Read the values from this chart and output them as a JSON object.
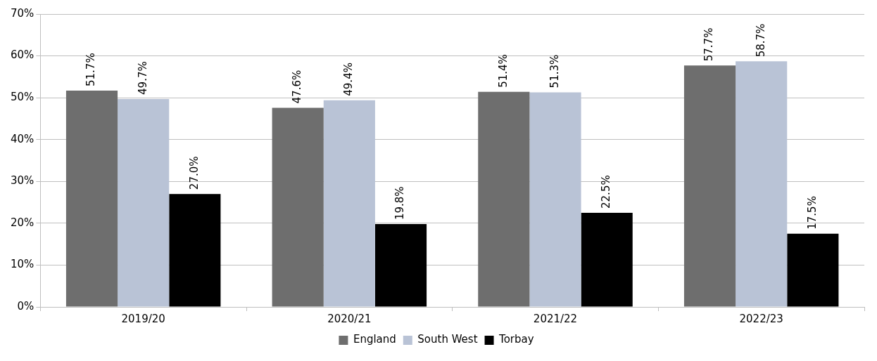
{
  "chart_data": {
    "type": "bar",
    "categories": [
      "2019/20",
      "2020/21",
      "2021/22",
      "2022/23"
    ],
    "series": [
      {
        "name": "England",
        "color": "#6e6e6e",
        "values": [
          51.7,
          47.6,
          51.4,
          57.7
        ],
        "value_labels": [
          "51.7%",
          "47.6%",
          "51.4%",
          "57.7%"
        ]
      },
      {
        "name": "South West",
        "color": "#b9c3d6",
        "values": [
          49.7,
          49.4,
          51.3,
          58.7
        ],
        "value_labels": [
          "49.7%",
          "49.4%",
          "51.3%",
          "58.7%"
        ]
      },
      {
        "name": "Torbay",
        "color": "#000000",
        "values": [
          27.0,
          19.8,
          22.5,
          17.5
        ],
        "value_labels": [
          "27.0%",
          "19.8%",
          "22.5%",
          "17.5%"
        ]
      }
    ],
    "ylim": [
      0,
      70
    ],
    "yticks": [
      {
        "value": 0,
        "label": "0%"
      },
      {
        "value": 10,
        "label": "10%"
      },
      {
        "value": 20,
        "label": "20%"
      },
      {
        "value": 30,
        "label": "30%"
      },
      {
        "value": 40,
        "label": "40%"
      },
      {
        "value": 50,
        "label": "50%"
      },
      {
        "value": 60,
        "label": "60%"
      },
      {
        "value": 70,
        "label": "70%"
      }
    ],
    "grid": "y",
    "legend": "bottom"
  }
}
